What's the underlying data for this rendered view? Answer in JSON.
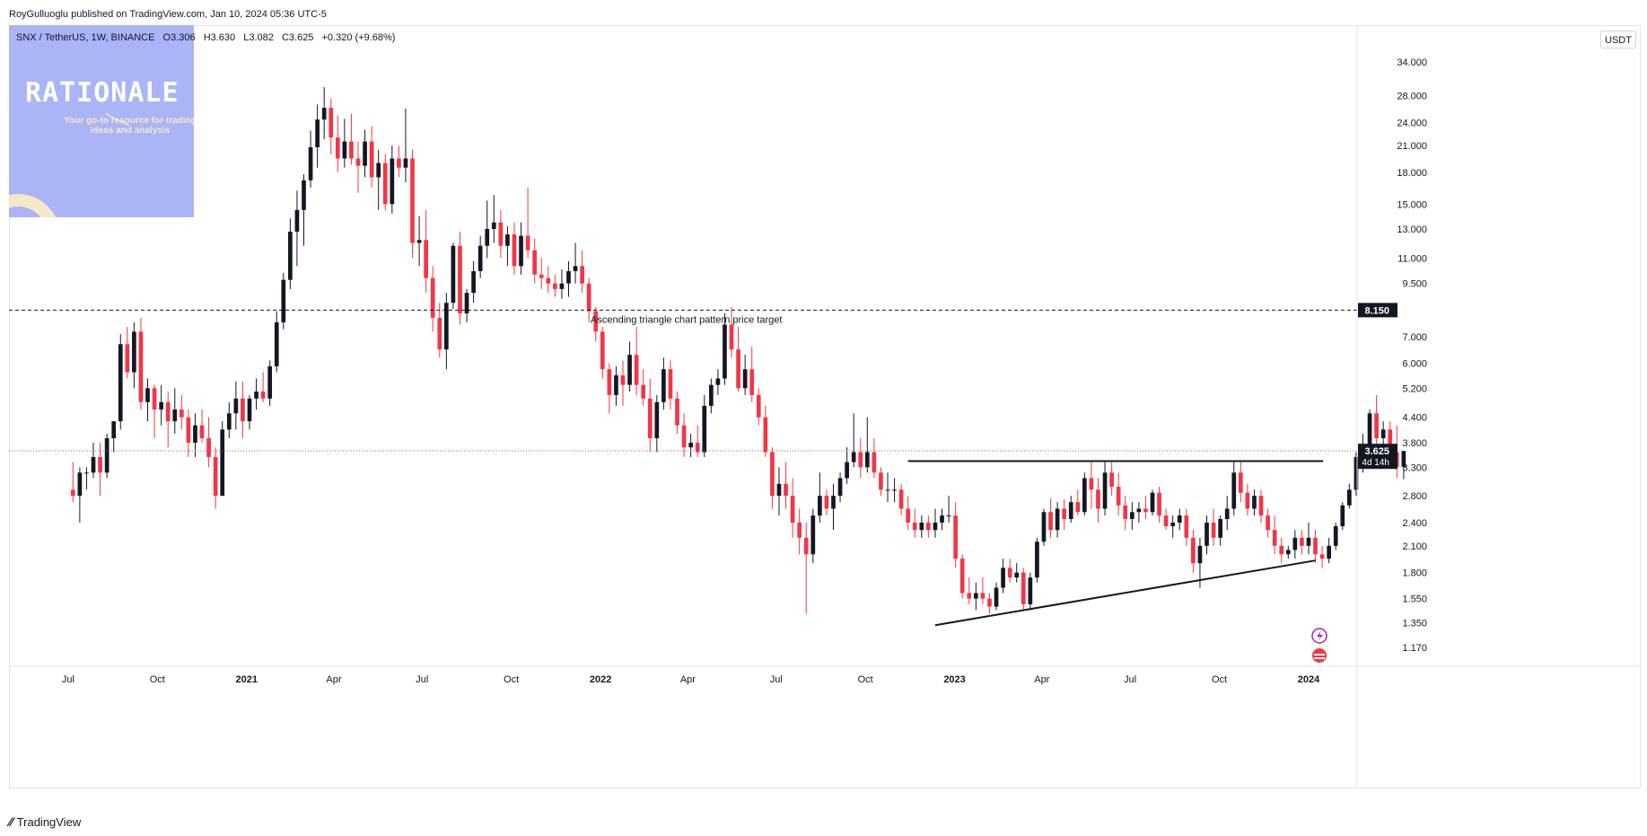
{
  "header": {
    "publish_line": "RoyGulluoglu published on TradingView.com, Jan 10, 2024 05:36 UTC-5"
  },
  "symbol_bar": {
    "pair": "SNX / TetherUS, 1W, BINANCE",
    "open": "O3.306",
    "high": "H3.630",
    "low": "L3.082",
    "close": "C3.625",
    "change": "+0.320 (+9.68%)"
  },
  "currency": "USDT",
  "watermark": {
    "title": "RATIONALE",
    "subtitle": "Your go-to resource for trading ideas and analysis"
  },
  "footer": {
    "logo_text": "TradingView"
  },
  "colors": {
    "up": "#131722",
    "down": "#f23645",
    "accent": "#2962ff",
    "watermark_bg": "#aab4f7"
  },
  "chart_data": {
    "type": "candlestick",
    "title": "SNX / TetherUS, 1W, BINANCE",
    "y_scale": "log",
    "ylim": [
      1.05,
      42
    ],
    "y_ticks": [
      "34.000",
      "28.000",
      "24.000",
      "21.000",
      "18.000",
      "15.000",
      "13.000",
      "11.000",
      "9.500",
      "7.000",
      "6.000",
      "5.200",
      "4.400",
      "3.800",
      "3.300",
      "2.800",
      "2.400",
      "2.100",
      "1.800",
      "1.550",
      "1.350",
      "1.170"
    ],
    "x_labels": [
      "Jul",
      "Oct",
      "2021",
      "Apr",
      "Jul",
      "Oct",
      "2022",
      "Apr",
      "Jul",
      "Oct",
      "2023",
      "Apr",
      "Jul",
      "Oct",
      "2024"
    ],
    "x_label_dates": [
      "2020-07-01",
      "2020-10-01",
      "2021-01-01",
      "2021-04-01",
      "2021-07-01",
      "2021-10-01",
      "2022-01-01",
      "2022-04-01",
      "2022-07-01",
      "2022-10-01",
      "2023-01-01",
      "2023-04-01",
      "2023-07-01",
      "2023-10-01",
      "2024-01-01"
    ],
    "x_range": [
      "2020-05-01",
      "2024-02-20"
    ],
    "grid": false,
    "candles_weekly_from": "2020-07-06",
    "candles_ohlc": [
      [
        2.9,
        3.4,
        2.7,
        2.8
      ],
      [
        2.8,
        3.3,
        2.4,
        3.2
      ],
      [
        3.2,
        3.3,
        2.9,
        3.2
      ],
      [
        3.2,
        3.8,
        3.1,
        3.5
      ],
      [
        3.5,
        3.8,
        2.8,
        3.2
      ],
      [
        3.2,
        4.0,
        3.1,
        3.9
      ],
      [
        3.9,
        4.3,
        3.6,
        4.3
      ],
      [
        4.3,
        7.1,
        4.1,
        6.7
      ],
      [
        6.7,
        7.4,
        5.5,
        5.7
      ],
      [
        5.7,
        7.6,
        5.2,
        7.2
      ],
      [
        7.2,
        7.8,
        4.6,
        4.8
      ],
      [
        4.8,
        5.5,
        4.3,
        5.2
      ],
      [
        5.2,
        5.3,
        3.9,
        4.6
      ],
      [
        4.6,
        5.3,
        4.2,
        4.8
      ],
      [
        4.8,
        5.1,
        3.7,
        4.3
      ],
      [
        4.3,
        5.2,
        4.0,
        4.6
      ],
      [
        4.6,
        5.0,
        4.1,
        4.4
      ],
      [
        4.4,
        4.6,
        3.5,
        3.8
      ],
      [
        3.8,
        4.5,
        3.5,
        4.2
      ],
      [
        4.2,
        4.6,
        3.8,
        3.9
      ],
      [
        3.9,
        4.4,
        3.3,
        3.5
      ],
      [
        3.5,
        3.7,
        2.6,
        2.8
      ],
      [
        2.8,
        4.3,
        2.8,
        4.1
      ],
      [
        4.1,
        4.8,
        3.9,
        4.5
      ],
      [
        4.5,
        5.4,
        4.1,
        4.9
      ],
      [
        4.9,
        5.4,
        3.9,
        4.3
      ],
      [
        4.3,
        5.0,
        4.1,
        4.9
      ],
      [
        4.9,
        5.5,
        4.6,
        5.1
      ],
      [
        5.1,
        5.7,
        4.8,
        4.9
      ],
      [
        4.9,
        6.1,
        4.7,
        5.9
      ],
      [
        5.9,
        8.1,
        5.7,
        7.6
      ],
      [
        7.6,
        10.1,
        7.3,
        9.7
      ],
      [
        9.7,
        13.8,
        9.2,
        12.8
      ],
      [
        12.8,
        16.2,
        10.5,
        14.5
      ],
      [
        14.5,
        17.8,
        11.8,
        17.2
      ],
      [
        17.2,
        22.9,
        16.5,
        20.8
      ],
      [
        20.8,
        26.6,
        18.5,
        24.4
      ],
      [
        24.4,
        29.4,
        21.8,
        26.1
      ],
      [
        26.1,
        27.5,
        20.0,
        22.0
      ],
      [
        22.0,
        25.0,
        18.0,
        19.5
      ],
      [
        19.5,
        24.5,
        18.5,
        21.5
      ],
      [
        21.5,
        25.2,
        18.8,
        19.5
      ],
      [
        19.5,
        21.5,
        16.0,
        18.7
      ],
      [
        18.7,
        23.0,
        17.5,
        21.5
      ],
      [
        21.5,
        23.5,
        16.5,
        17.5
      ],
      [
        17.5,
        20.5,
        14.5,
        19.0
      ],
      [
        19.0,
        20.0,
        14.5,
        15.0
      ],
      [
        15.0,
        21.0,
        14.2,
        19.5
      ],
      [
        19.5,
        21.0,
        17.5,
        18.5
      ],
      [
        18.5,
        26.0,
        17.0,
        19.5
      ],
      [
        19.5,
        20.5,
        11.0,
        12.0
      ],
      [
        12.0,
        14.0,
        10.5,
        12.2
      ],
      [
        12.2,
        14.5,
        9.0,
        9.8
      ],
      [
        9.8,
        10.5,
        7.2,
        7.8
      ],
      [
        7.8,
        8.5,
        6.2,
        6.5
      ],
      [
        6.5,
        9.0,
        5.8,
        8.5
      ],
      [
        8.5,
        12.0,
        8.2,
        11.8
      ],
      [
        11.8,
        12.8,
        7.5,
        8.0
      ],
      [
        8.0,
        9.2,
        7.6,
        9.0
      ],
      [
        9.0,
        10.8,
        8.5,
        10.2
      ],
      [
        10.2,
        12.5,
        9.8,
        11.8
      ],
      [
        11.8,
        15.3,
        11.0,
        13.0
      ],
      [
        13.0,
        15.8,
        12.0,
        13.5
      ],
      [
        13.5,
        14.5,
        11.0,
        11.8
      ],
      [
        11.8,
        13.2,
        10.5,
        12.6
      ],
      [
        12.6,
        13.5,
        10.0,
        10.5
      ],
      [
        10.5,
        13.5,
        10.0,
        12.5
      ],
      [
        12.5,
        16.5,
        11.0,
        11.5
      ],
      [
        11.5,
        12.3,
        9.5,
        10.0
      ],
      [
        10.0,
        11.0,
        9.2,
        9.8
      ],
      [
        9.8,
        10.5,
        9.0,
        9.5
      ],
      [
        9.5,
        10.0,
        8.8,
        9.2
      ],
      [
        9.2,
        10.3,
        8.7,
        9.5
      ],
      [
        9.5,
        10.8,
        8.8,
        10.2
      ],
      [
        10.2,
        12.0,
        9.5,
        10.5
      ],
      [
        10.5,
        11.5,
        9.0,
        9.5
      ],
      [
        9.5,
        9.8,
        7.6,
        8.1
      ],
      [
        8.1,
        8.3,
        6.8,
        7.2
      ],
      [
        7.2,
        7.4,
        5.5,
        5.8
      ],
      [
        5.8,
        6.0,
        4.5,
        5.0
      ],
      [
        5.0,
        5.9,
        4.7,
        5.6
      ],
      [
        5.6,
        6.1,
        4.7,
        5.3
      ],
      [
        5.3,
        6.8,
        5.1,
        6.3
      ],
      [
        6.3,
        7.4,
        5.0,
        5.3
      ],
      [
        5.3,
        5.8,
        4.7,
        4.9
      ],
      [
        4.9,
        5.5,
        3.6,
        3.9
      ],
      [
        3.9,
        5.0,
        3.6,
        4.8
      ],
      [
        4.8,
        6.2,
        4.6,
        5.8
      ],
      [
        5.8,
        6.1,
        4.6,
        4.9
      ],
      [
        4.9,
        5.1,
        4.0,
        4.2
      ],
      [
        4.2,
        4.5,
        3.5,
        3.7
      ],
      [
        3.7,
        4.0,
        3.5,
        3.8
      ],
      [
        3.8,
        4.2,
        3.5,
        3.6
      ],
      [
        3.6,
        5.0,
        3.5,
        4.7
      ],
      [
        4.7,
        5.5,
        4.5,
        5.3
      ],
      [
        5.3,
        5.8,
        5.0,
        5.5
      ],
      [
        5.5,
        8.0,
        5.3,
        7.5
      ],
      [
        7.5,
        8.3,
        6.2,
        6.5
      ],
      [
        6.5,
        7.4,
        5.1,
        5.2
      ],
      [
        5.2,
        6.3,
        5.0,
        5.8
      ],
      [
        5.8,
        6.6,
        4.8,
        5.0
      ],
      [
        5.0,
        5.2,
        4.2,
        4.4
      ],
      [
        4.4,
        4.7,
        3.5,
        3.6
      ],
      [
        3.6,
        3.7,
        2.6,
        2.8
      ],
      [
        2.8,
        3.3,
        2.5,
        3.0
      ],
      [
        3.0,
        3.4,
        2.6,
        2.8
      ],
      [
        2.8,
        3.1,
        2.2,
        2.4
      ],
      [
        2.4,
        2.6,
        2.0,
        2.2
      ],
      [
        2.2,
        2.4,
        1.42,
        2.0
      ],
      [
        2.0,
        2.6,
        1.9,
        2.5
      ],
      [
        2.5,
        3.2,
        2.4,
        2.8
      ],
      [
        2.8,
        2.9,
        2.5,
        2.6
      ],
      [
        2.6,
        3.0,
        2.3,
        2.8
      ],
      [
        2.8,
        3.2,
        2.7,
        3.1
      ],
      [
        3.1,
        3.7,
        3.0,
        3.4
      ],
      [
        3.4,
        4.5,
        3.3,
        3.6
      ],
      [
        3.6,
        3.9,
        3.1,
        3.3
      ],
      [
        3.3,
        4.4,
        3.2,
        3.6
      ],
      [
        3.6,
        3.9,
        3.1,
        3.2
      ],
      [
        3.2,
        3.3,
        2.8,
        2.9
      ],
      [
        2.9,
        3.2,
        2.7,
        2.9
      ],
      [
        2.9,
        3.1,
        2.7,
        2.9
      ],
      [
        2.9,
        3.0,
        2.5,
        2.6
      ],
      [
        2.6,
        2.8,
        2.3,
        2.4
      ],
      [
        2.4,
        2.6,
        2.2,
        2.3
      ],
      [
        2.3,
        2.5,
        2.2,
        2.4
      ],
      [
        2.4,
        2.5,
        2.2,
        2.3
      ],
      [
        2.3,
        2.6,
        2.2,
        2.4
      ],
      [
        2.4,
        2.6,
        2.3,
        2.5
      ],
      [
        2.5,
        2.8,
        2.4,
        2.5
      ],
      [
        2.5,
        2.7,
        1.85,
        1.95
      ],
      [
        1.95,
        2.0,
        1.55,
        1.6
      ],
      [
        1.6,
        1.75,
        1.5,
        1.55
      ],
      [
        1.55,
        1.7,
        1.45,
        1.6
      ],
      [
        1.6,
        1.75,
        1.5,
        1.55
      ],
      [
        1.55,
        1.6,
        1.42,
        1.48
      ],
      [
        1.48,
        1.7,
        1.45,
        1.65
      ],
      [
        1.65,
        1.95,
        1.6,
        1.85
      ],
      [
        1.85,
        1.95,
        1.7,
        1.75
      ],
      [
        1.75,
        1.9,
        1.7,
        1.8
      ],
      [
        1.8,
        1.85,
        1.45,
        1.5
      ],
      [
        1.5,
        1.8,
        1.45,
        1.75
      ],
      [
        1.75,
        2.2,
        1.7,
        2.15
      ],
      [
        2.15,
        2.6,
        2.1,
        2.55
      ],
      [
        2.55,
        2.75,
        2.2,
        2.3
      ],
      [
        2.3,
        2.7,
        2.2,
        2.6
      ],
      [
        2.6,
        2.75,
        2.3,
        2.45
      ],
      [
        2.45,
        2.8,
        2.4,
        2.7
      ],
      [
        2.7,
        2.9,
        2.5,
        2.55
      ],
      [
        2.55,
        3.2,
        2.5,
        3.1
      ],
      [
        3.1,
        3.4,
        2.6,
        2.9
      ],
      [
        2.9,
        3.1,
        2.4,
        2.6
      ],
      [
        2.6,
        3.4,
        2.5,
        3.2
      ],
      [
        3.2,
        3.4,
        2.8,
        2.95
      ],
      [
        2.95,
        3.2,
        2.5,
        2.65
      ],
      [
        2.65,
        2.8,
        2.3,
        2.45
      ],
      [
        2.45,
        2.7,
        2.3,
        2.55
      ],
      [
        2.55,
        2.7,
        2.4,
        2.6
      ],
      [
        2.6,
        2.8,
        2.45,
        2.55
      ],
      [
        2.55,
        2.9,
        2.5,
        2.85
      ],
      [
        2.85,
        2.95,
        2.4,
        2.5
      ],
      [
        2.5,
        2.6,
        2.3,
        2.35
      ],
      [
        2.35,
        2.5,
        2.2,
        2.4
      ],
      [
        2.4,
        2.6,
        2.3,
        2.5
      ],
      [
        2.5,
        2.6,
        2.1,
        2.2
      ],
      [
        2.2,
        2.3,
        1.8,
        1.9
      ],
      [
        1.9,
        2.2,
        1.65,
        2.1
      ],
      [
        2.1,
        2.5,
        2.0,
        2.4
      ],
      [
        2.4,
        2.6,
        2.1,
        2.2
      ],
      [
        2.2,
        2.5,
        2.1,
        2.45
      ],
      [
        2.45,
        2.8,
        2.3,
        2.6
      ],
      [
        2.6,
        3.4,
        2.5,
        3.2
      ],
      [
        3.2,
        3.4,
        2.7,
        2.85
      ],
      [
        2.85,
        3.0,
        2.5,
        2.6
      ],
      [
        2.6,
        2.9,
        2.5,
        2.8
      ],
      [
        2.8,
        2.9,
        2.4,
        2.5
      ],
      [
        2.5,
        2.6,
        2.2,
        2.3
      ],
      [
        2.3,
        2.5,
        2.0,
        2.1
      ],
      [
        2.1,
        2.2,
        1.9,
        2.0
      ],
      [
        2.0,
        2.1,
        1.95,
        2.05
      ],
      [
        2.05,
        2.3,
        1.95,
        2.2
      ],
      [
        2.2,
        2.3,
        2.0,
        2.1
      ],
      [
        2.1,
        2.4,
        2.0,
        2.2
      ],
      [
        2.2,
        2.3,
        1.9,
        2.0
      ],
      [
        2.0,
        2.1,
        1.85,
        1.95
      ],
      [
        1.95,
        2.2,
        1.9,
        2.1
      ],
      [
        2.1,
        2.4,
        2.05,
        2.35
      ],
      [
        2.35,
        2.7,
        2.3,
        2.65
      ],
      [
        2.65,
        3.0,
        2.6,
        2.9
      ],
      [
        2.9,
        3.6,
        2.8,
        3.5
      ],
      [
        3.5,
        4.0,
        3.2,
        3.7
      ],
      [
        3.7,
        4.6,
        3.6,
        4.5
      ],
      [
        4.5,
        5.0,
        3.7,
        3.9
      ],
      [
        3.9,
        4.3,
        3.6,
        4.1
      ],
      [
        4.1,
        4.3,
        3.4,
        3.6
      ],
      [
        3.6,
        4.2,
        3.1,
        3.306
      ],
      [
        3.306,
        3.63,
        3.082,
        3.625
      ]
    ],
    "annotations": [
      {
        "type": "hline",
        "style": "dashed",
        "y": 8.15,
        "label": "Ascending triangle chart pattern price target"
      },
      {
        "type": "hline",
        "style": "solid",
        "y": 3.42,
        "x_start": "2022-11-14",
        "x_end": "2024-01-16"
      },
      {
        "type": "trendline",
        "style": "solid",
        "points": [
          [
            "2022-12-12",
            1.33
          ],
          [
            "2024-01-08",
            1.93
          ]
        ]
      },
      {
        "type": "hline",
        "style": "dotted",
        "y": 3.625
      }
    ],
    "price_labels": [
      {
        "y": 8.15,
        "text": "8.150"
      },
      {
        "y": 3.625,
        "text": "3.625",
        "sub": "4d 14h"
      }
    ]
  }
}
